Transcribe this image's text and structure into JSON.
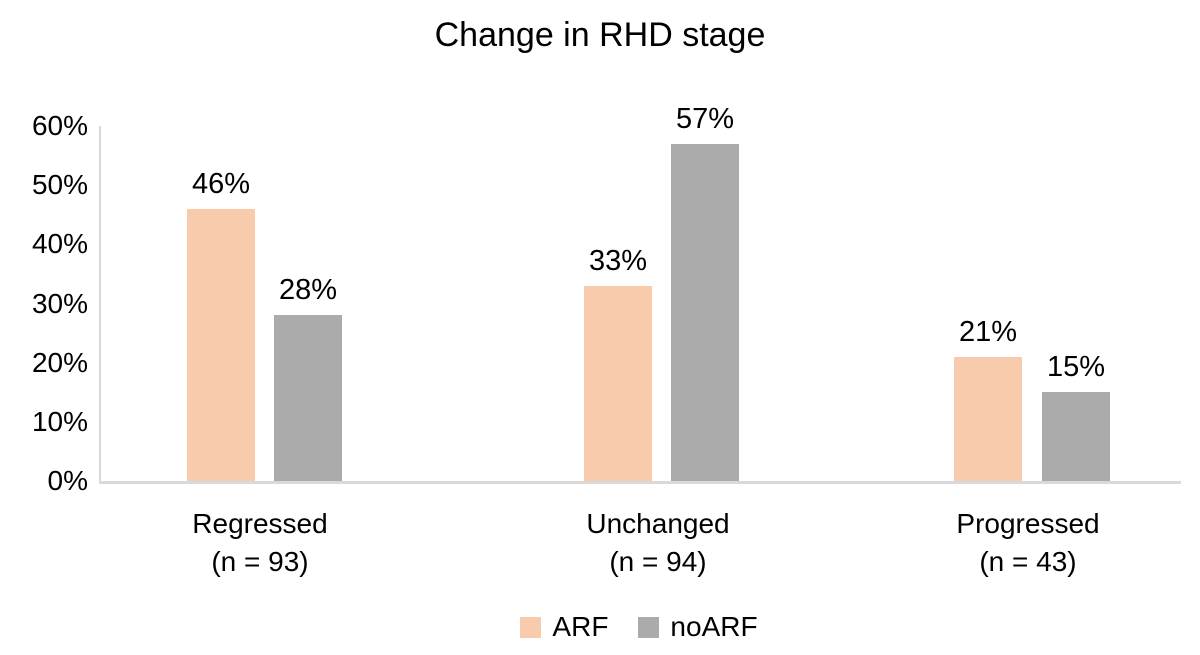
{
  "title": "Change in RHD stage",
  "y_axis": {
    "ticks": [
      "60%",
      "50%",
      "40%",
      "30%",
      "20%",
      "10%",
      "0%"
    ]
  },
  "categories": [
    {
      "label": "Regressed",
      "sublabel": "(n = 93)"
    },
    {
      "label": "Unchanged",
      "sublabel": "(n = 94)"
    },
    {
      "label": "Progressed",
      "sublabel": "(n = 43)"
    }
  ],
  "legend": {
    "items": [
      "ARF",
      "noARF"
    ]
  },
  "chart_data": {
    "type": "bar",
    "title": "Change in RHD stage",
    "categories": [
      "Regressed (n = 93)",
      "Unchanged (n = 94)",
      "Progressed (n = 43)"
    ],
    "series": [
      {
        "name": "ARF",
        "color": "#F8CBAD",
        "values": [
          46,
          33,
          21
        ],
        "labels": [
          "46%",
          "33%",
          "21%"
        ]
      },
      {
        "name": "noARF",
        "color": "#ABABAB",
        "values": [
          28,
          57,
          15
        ],
        "labels": [
          "28%",
          "57%",
          "15%"
        ]
      }
    ],
    "xlabel": "",
    "ylabel": "",
    "ylim": [
      0,
      60
    ],
    "ytick_step": 10,
    "ytick_format": "percent",
    "grid": false,
    "legend_position": "bottom",
    "axis_color": "#D9D9D9",
    "text_color": "#000000",
    "background": "#FFFFFF"
  }
}
